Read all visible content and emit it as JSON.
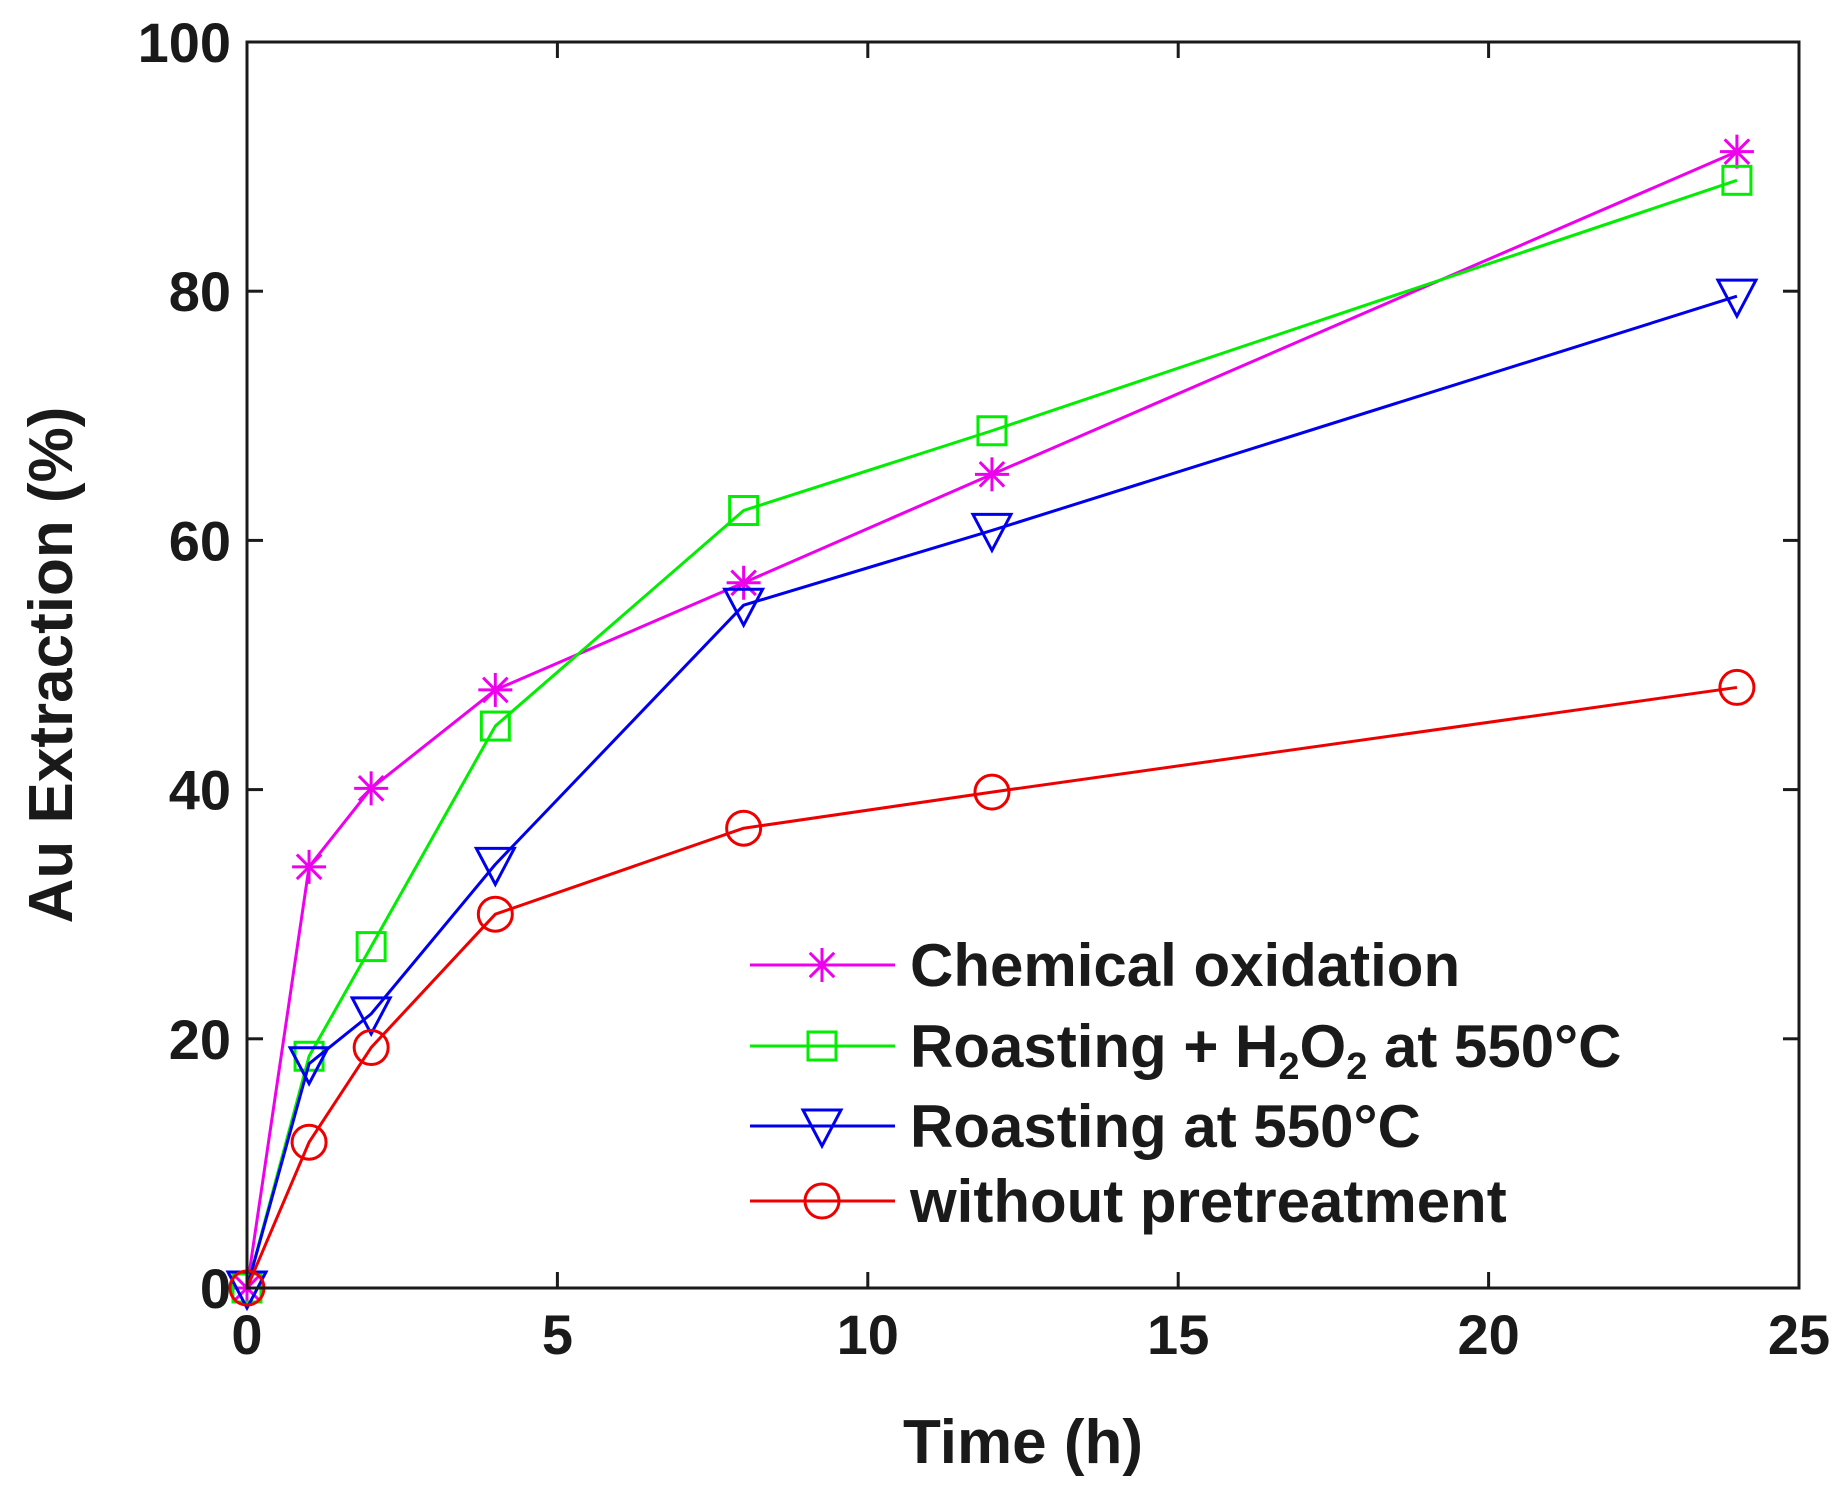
{
  "chart_data": {
    "type": "line",
    "title": "",
    "xlabel": "Time (h)",
    "ylabel": "Au Extraction (%)",
    "xlim": [
      0,
      25
    ],
    "ylim": [
      0,
      100
    ],
    "xticks": [
      0,
      5,
      10,
      15,
      20,
      25
    ],
    "yticks": [
      0,
      20,
      40,
      60,
      80,
      100
    ],
    "xtick_labels": [
      "0",
      "5",
      "10",
      "15",
      "20",
      "25"
    ],
    "ytick_labels": [
      "0",
      "20",
      "40",
      "60",
      "80",
      "100"
    ],
    "grid": false,
    "legend_position": "bottom-right",
    "series": [
      {
        "name": "Chemical oxidation",
        "label_main": "Chemical oxidation",
        "color": "#ee00ee",
        "marker": "asterisk",
        "x": [
          0,
          1,
          2,
          4,
          8,
          12,
          24
        ],
        "y": [
          0,
          33.8,
          40.1,
          48.0,
          56.6,
          65.3,
          91.2
        ]
      },
      {
        "name": "Roasting + H2O2 at 550°C",
        "label_main": "Roasting + H",
        "label_sub1": "2",
        "label_mid": "O",
        "label_sub2": "2",
        "label_tail": " at 550°C",
        "color": "#00ee00",
        "marker": "square",
        "x": [
          0,
          1,
          2,
          4,
          8,
          12,
          24
        ],
        "y": [
          0,
          18.6,
          27.4,
          45.1,
          62.4,
          68.8,
          88.9
        ]
      },
      {
        "name": "Roasting at 550°C",
        "label_main": "Roasting at 550°C",
        "color": "#0000ee",
        "marker": "triangle-down",
        "x": [
          0,
          1,
          2,
          4,
          8,
          12,
          24
        ],
        "y": [
          0,
          18.0,
          22.0,
          34.0,
          54.8,
          60.8,
          79.6
        ]
      },
      {
        "name": "without pretreatment",
        "label_main": "without pretreatment",
        "color": "#ee0000",
        "marker": "circle",
        "x": [
          0,
          1,
          2,
          4,
          8,
          12,
          24
        ],
        "y": [
          0,
          11.7,
          19.3,
          30.0,
          36.9,
          39.8,
          48.2
        ]
      }
    ]
  }
}
